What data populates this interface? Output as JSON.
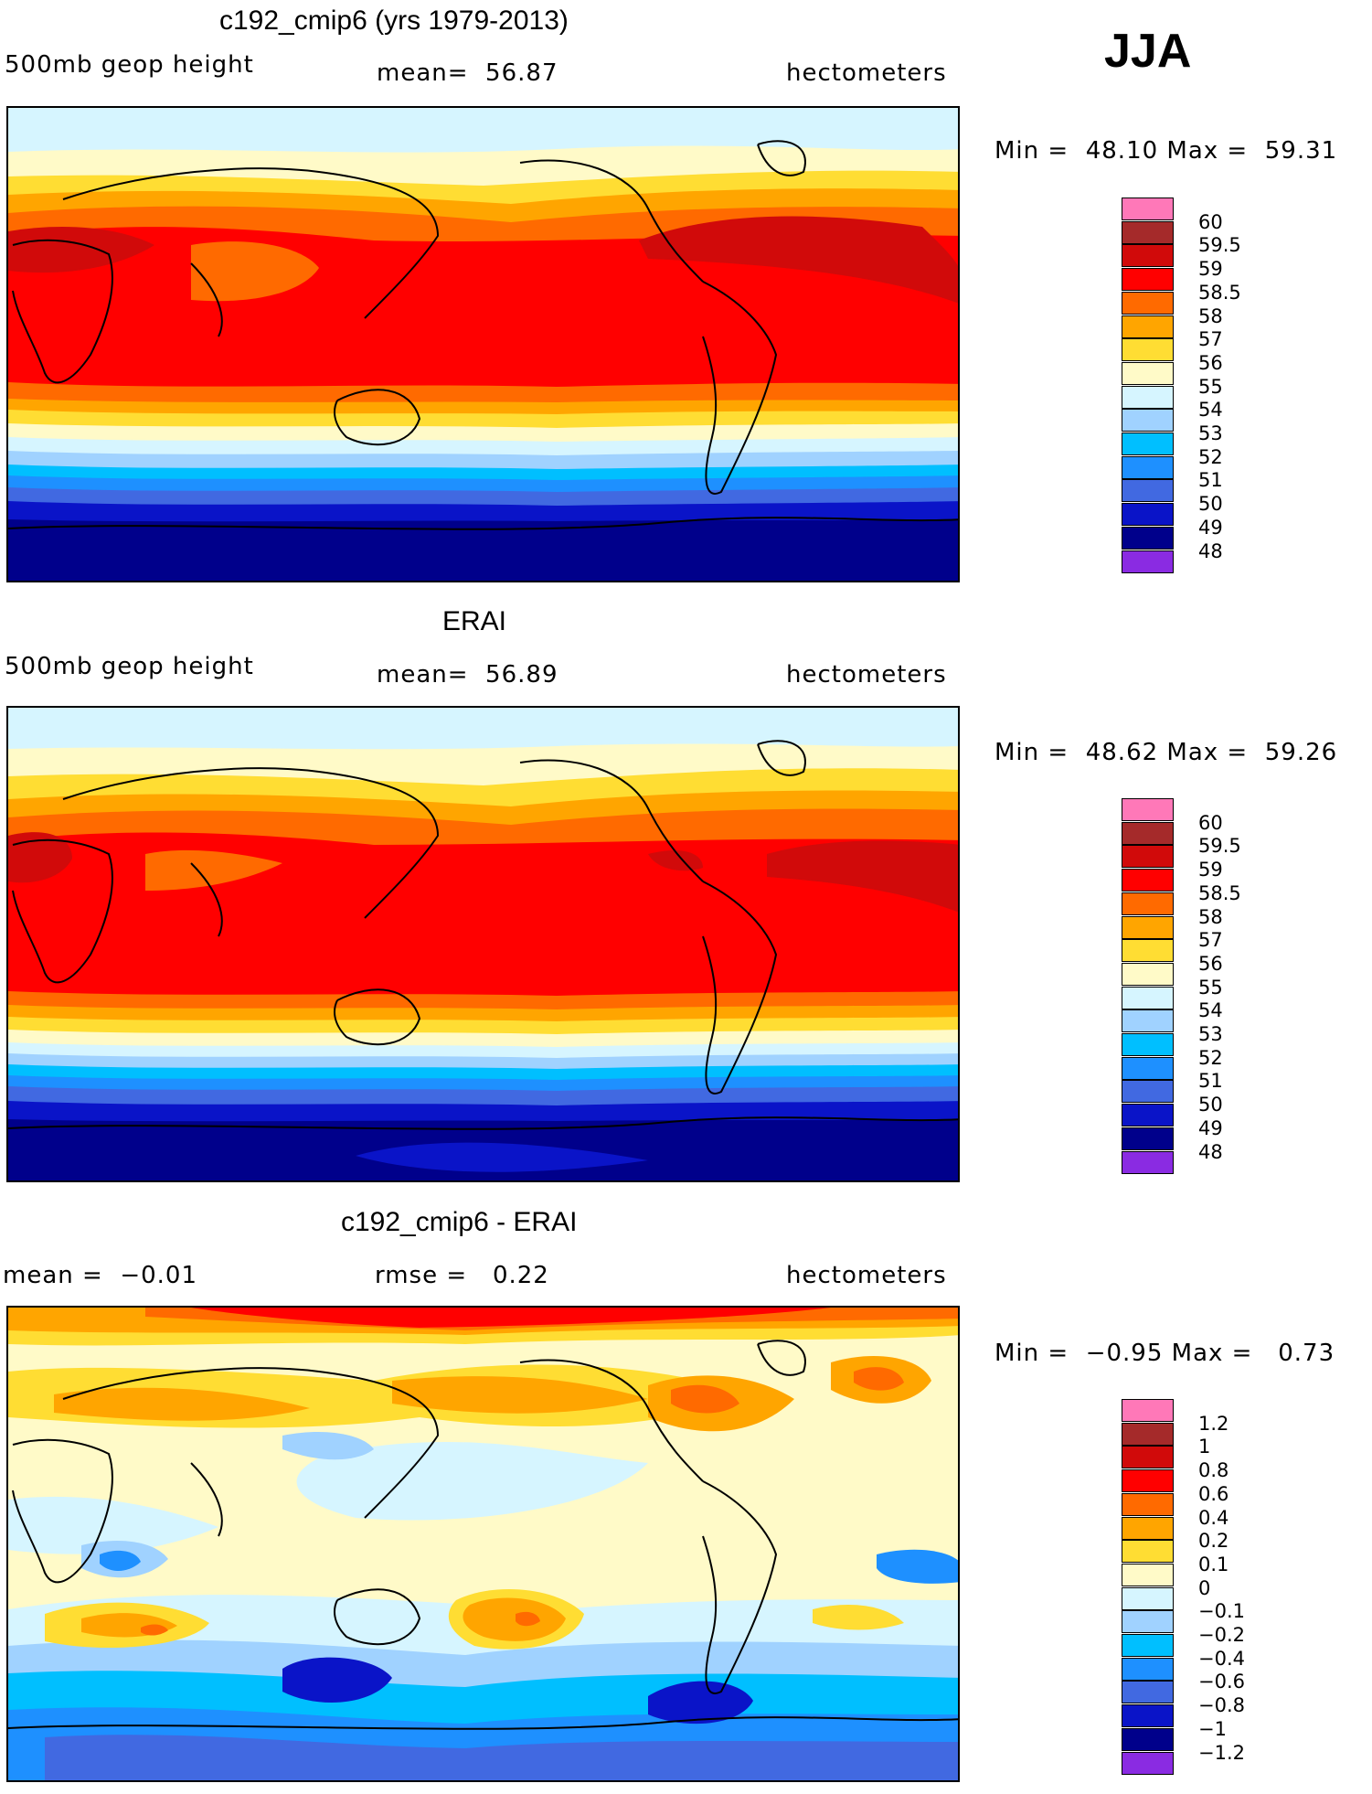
{
  "season": "JJA",
  "panels": [
    {
      "title": "c192_cmip6 (yrs 1979-2013)",
      "left_label": "500mb geop height",
      "mid_label": "mean=  56.87",
      "right_label": "hectometers",
      "minmax": "Min =  48.10 Max =  59.31",
      "colorbar": {
        "colors": [
          "#ff78b8",
          "#a52a2a",
          "#d10a0a",
          "#ff0000",
          "#ff6a00",
          "#ffa500",
          "#ffdd33",
          "#fffac8",
          "#d6f5ff",
          "#a0d2ff",
          "#00bfff",
          "#1e90ff",
          "#4169e1",
          "#0a14c8",
          "#00008b",
          "#8a2be2"
        ],
        "labels": [
          "60",
          "59.5",
          "59",
          "58.5",
          "58",
          "57",
          "56",
          "55",
          "54",
          "53",
          "52",
          "51",
          "50",
          "49",
          "48"
        ]
      }
    },
    {
      "title": "ERAI",
      "left_label": "500mb geop height",
      "mid_label": "mean=  56.89",
      "right_label": "hectometers",
      "minmax": "Min =  48.62 Max =  59.26",
      "colorbar": {
        "colors": [
          "#ff78b8",
          "#a52a2a",
          "#d10a0a",
          "#ff0000",
          "#ff6a00",
          "#ffa500",
          "#ffdd33",
          "#fffac8",
          "#d6f5ff",
          "#a0d2ff",
          "#00bfff",
          "#1e90ff",
          "#4169e1",
          "#0a14c8",
          "#00008b",
          "#8a2be2"
        ],
        "labels": [
          "60",
          "59.5",
          "59",
          "58.5",
          "58",
          "57",
          "56",
          "55",
          "54",
          "53",
          "52",
          "51",
          "50",
          "49",
          "48"
        ]
      }
    },
    {
      "title": "c192_cmip6 - ERAI",
      "left_label": "mean =  −0.01",
      "mid_label": "rmse =   0.22",
      "right_label": "hectometers",
      "minmax": "Min =  −0.95 Max =   0.73",
      "colorbar": {
        "colors": [
          "#ff78b8",
          "#a52a2a",
          "#d10a0a",
          "#ff0000",
          "#ff6a00",
          "#ffa500",
          "#ffdd33",
          "#fffac8",
          "#d6f5ff",
          "#a0d2ff",
          "#00bfff",
          "#1e90ff",
          "#4169e1",
          "#0a14c8",
          "#00008b",
          "#8a2be2"
        ],
        "labels": [
          "1.2",
          "1",
          "0.8",
          "0.6",
          "0.4",
          "0.2",
          "0.1",
          "0",
          "−0.1",
          "−0.2",
          "−0.4",
          "−0.6",
          "−0.8",
          "−1",
          "−1.2"
        ]
      }
    }
  ]
}
